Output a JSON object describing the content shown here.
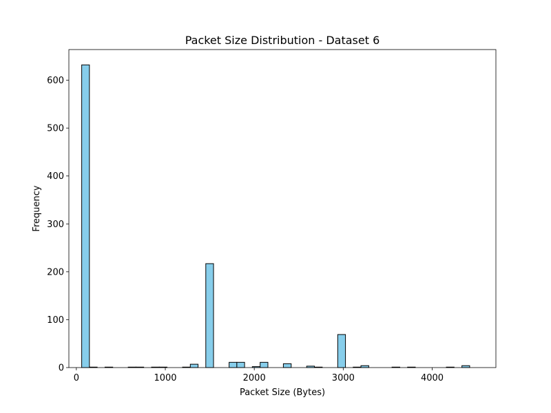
{
  "chart_data": {
    "type": "bar",
    "title": "Packet Size Distribution - Dataset 6",
    "xlabel": "Packet Size (Bytes)",
    "ylabel": "Frequency",
    "xlim": [
      -84,
      4716
    ],
    "ylim": [
      0,
      664
    ],
    "xticks": [
      0,
      1000,
      2000,
      3000,
      4000
    ],
    "yticks": [
      0,
      100,
      200,
      300,
      400,
      500,
      600
    ],
    "bar_color": "#87ceeb",
    "edge_color": "#000000",
    "grid": false,
    "bins": [
      {
        "x0": 60,
        "x1": 147,
        "count": 632
      },
      {
        "x0": 147,
        "x1": 234,
        "count": 1
      },
      {
        "x0": 322,
        "x1": 409,
        "count": 1
      },
      {
        "x0": 583,
        "x1": 670,
        "count": 1
      },
      {
        "x0": 670,
        "x1": 757,
        "count": 1
      },
      {
        "x0": 845,
        "x1": 932,
        "count": 1
      },
      {
        "x0": 932,
        "x1": 1019,
        "count": 1
      },
      {
        "x0": 1194,
        "x1": 1281,
        "count": 1
      },
      {
        "x0": 1281,
        "x1": 1368,
        "count": 7
      },
      {
        "x0": 1455,
        "x1": 1542,
        "count": 217
      },
      {
        "x0": 1717,
        "x1": 1804,
        "count": 11
      },
      {
        "x0": 1804,
        "x1": 1891,
        "count": 11
      },
      {
        "x0": 1978,
        "x1": 2066,
        "count": 2
      },
      {
        "x0": 2066,
        "x1": 2153,
        "count": 11
      },
      {
        "x0": 2327,
        "x1": 2415,
        "count": 8
      },
      {
        "x0": 2589,
        "x1": 2676,
        "count": 3
      },
      {
        "x0": 2676,
        "x1": 2764,
        "count": 1
      },
      {
        "x0": 2938,
        "x1": 3025,
        "count": 69
      },
      {
        "x0": 3112,
        "x1": 3199,
        "count": 1
      },
      {
        "x0": 3199,
        "x1": 3287,
        "count": 4
      },
      {
        "x0": 3548,
        "x1": 3636,
        "count": 1
      },
      {
        "x0": 3723,
        "x1": 3810,
        "count": 1
      },
      {
        "x0": 4159,
        "x1": 4246,
        "count": 1
      },
      {
        "x0": 4334,
        "x1": 4421,
        "count": 4
      }
    ]
  }
}
